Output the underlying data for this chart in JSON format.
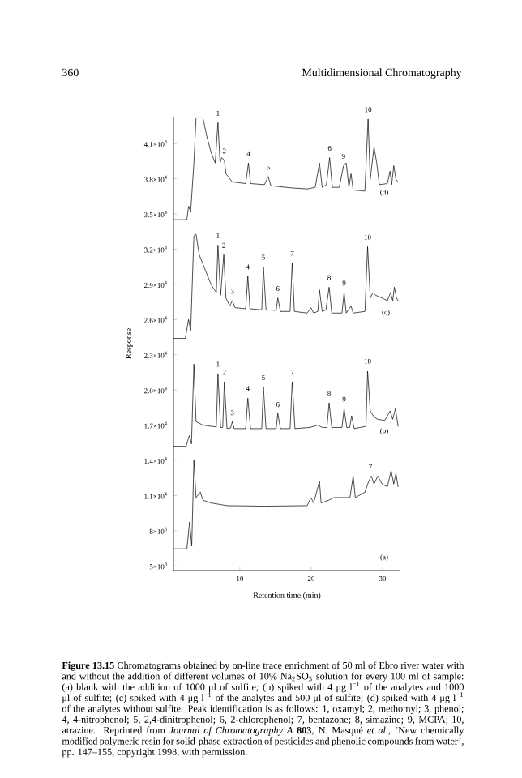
{
  "chart_data": {
    "type": "line",
    "xlabel": "Retention time (min)",
    "ylabel": "Response",
    "xlim": [
      0.7,
      32.5
    ],
    "ylim": [
      4600,
      43300
    ],
    "xticks": [
      10,
      20,
      30
    ],
    "yticks": [
      {
        "value": 5000,
        "label": "5×10$^{3}$"
      },
      {
        "value": 8000,
        "label": "8×10$^{3}$"
      },
      {
        "value": 11000,
        "label": "1.1×10$^{4}$"
      },
      {
        "value": 14000,
        "label": "1.4×10$^{4}$"
      },
      {
        "value": 17000,
        "label": "1.7×10$^{4}$"
      },
      {
        "value": 20000,
        "label": "2.0×10$^{4}$"
      },
      {
        "value": 23000,
        "label": "2.3×10$^{4}$"
      },
      {
        "value": 26000,
        "label": "2.6×10$^{4}$"
      },
      {
        "value": 29000,
        "label": "2.9×10$^{4}$"
      },
      {
        "value": 32000,
        "label": "3.2×10$^{4}$"
      },
      {
        "value": 35000,
        "label": "3.5×10$^{4}$"
      },
      {
        "value": 38000,
        "label": "3.8×10$^{4}$"
      },
      {
        "value": 41000,
        "label": "4.1×10$^{4}$"
      }
    ],
    "series": [
      {
        "color": "#000000",
        "x": [
          0.71,
          2.58,
          2.96,
          3.26,
          3.56,
          3.86,
          4.46,
          4.83,
          5.96,
          8.2,
          13.45,
          19.44,
          19.96,
          20.34,
          21.16,
          21.39,
          22.44,
          23.19,
          25.43,
          25.88,
          26.18,
          27.53,
          28.05,
          28.43,
          28.8,
          29.33,
          29.93,
          30.67,
          31.2,
          31.57,
          31.87,
          32.17
        ],
        "values": [
          6454,
          6454,
          8754,
          6684,
          14044,
          10824,
          11284,
          10594,
          10364,
          10134,
          10088,
          10134,
          10824,
          10364,
          12204,
          10364,
          10594,
          10824,
          10824,
          12664,
          10824,
          11284,
          12204,
          12664,
          11974,
          12664,
          11974,
          11744,
          13124,
          11974,
          12894,
          11744
        ]
      },
      {
        "color": "#000000",
        "x": [
          0.71,
          2.47,
          2.92,
          3.22,
          3.56,
          3.86,
          4.83,
          5.96,
          6.7,
          6.93,
          7.3,
          7.6,
          7.83,
          8.2,
          8.7,
          8.95,
          9.2,
          10.82,
          11.12,
          11.5,
          13.07,
          13.3,
          13.67,
          15.09,
          15.32,
          15.69,
          17.04,
          17.34,
          17.72,
          19.81,
          20.93,
          21.54,
          22.2,
          22.51,
          22.88,
          24.31,
          24.61,
          24.98,
          25.4,
          25.66,
          26.03,
          27.67,
          27.9,
          28.28,
          28.8,
          29.33,
          30.3,
          31.05,
          31.42,
          31.8,
          32.17
        ],
        "values": [
          15200,
          15200,
          16100,
          15400,
          22200,
          17300,
          17000,
          16900,
          16850,
          21400,
          16800,
          16800,
          20700,
          16700,
          16750,
          17300,
          16700,
          16700,
          19300,
          16700,
          16700,
          20300,
          16700,
          16700,
          18000,
          16700,
          16700,
          20700,
          16700,
          16800,
          17000,
          16800,
          16800,
          18900,
          16800,
          16800,
          18400,
          16800,
          16800,
          17800,
          16700,
          16900,
          21600,
          18200,
          17700,
          17500,
          17400,
          18200,
          17500,
          18400,
          16900
        ]
      },
      {
        "color": "#000000",
        "x": [
          0.71,
          2.36,
          2.81,
          3.11,
          3.56,
          3.86,
          4.31,
          5.21,
          5.96,
          6.7,
          6.93,
          7.3,
          7.75,
          8.05,
          8.58,
          8.95,
          9.33,
          10.82,
          11.12,
          11.42,
          13.07,
          13.3,
          13.67,
          15.09,
          15.32,
          15.69,
          17.04,
          17.34,
          17.64,
          19.44,
          19.96,
          20.34,
          20.93,
          21.16,
          21.54,
          22.06,
          22.51,
          22.88,
          24.31,
          24.61,
          24.91,
          25.58,
          25.88,
          27.53,
          27.9,
          28.28,
          28.65,
          29.03,
          29.55,
          30.67,
          31.12,
          31.42,
          31.65,
          31.95,
          32.17
        ],
        "values": [
          24394,
          24394,
          26004,
          25084,
          33134,
          33272,
          31524,
          30144,
          28994,
          28304,
          32352,
          28074,
          31524,
          27844,
          27154,
          27614,
          27016,
          26924,
          29684,
          26924,
          26832,
          30512,
          26832,
          26786,
          27844,
          26694,
          26694,
          30834,
          26694,
          26556,
          27016,
          26556,
          26694,
          28534,
          26694,
          26832,
          28764,
          26556,
          26556,
          28304,
          26556,
          27154,
          26556,
          26694,
          32214,
          27844,
          28304,
          28074,
          27936,
          27614,
          28304,
          27614,
          28764,
          27844,
          27614
        ]
      },
      {
        "color": "#000000",
        "x": [
          0.71,
          2.58,
          2.81,
          3.11,
          3.56,
          3.86,
          4.83,
          5.36,
          5.96,
          6.55,
          6.93,
          7.23,
          7.45,
          7.83,
          8.05,
          8.95,
          10.82,
          11.2,
          11.5,
          13.45,
          13.97,
          14.34,
          17.19,
          19.44,
          20.56,
          21.16,
          21.54,
          22.13,
          22.58,
          22.96,
          23.93,
          24.53,
          24.91,
          25.28,
          25.58,
          25.88,
          27.52,
          27.97,
          28.27,
          28.8,
          29.18,
          29.55,
          30.67,
          31.05,
          31.27,
          31.57,
          31.87,
          32.17
        ],
        "values": [
          34514,
          34514,
          35664,
          35204,
          39344,
          43200,
          43200,
          41644,
          40264,
          39344,
          42794,
          39344,
          39804,
          39574,
          38424,
          37734,
          37596,
          39344,
          37596,
          37504,
          38194,
          37412,
          37228,
          37136,
          37274,
          39344,
          37274,
          37504,
          39804,
          37274,
          37274,
          39114,
          39344,
          37274,
          38424,
          37044,
          36952,
          43100,
          37964,
          40724,
          39344,
          37504,
          37596,
          38654,
          37504,
          39114,
          37964,
          37734
        ]
      }
    ],
    "annotations": [
      "360",
      "Multidimensional Chromatography",
      "**Figure 13.15** Chromatograms obtained by on-line trace enrichment of 50 ml of Ebro river water with and without the addition of different volumes of 10% Na$_{2}$SO$_{3}$ solution for every 100 ml of sample: (a) blank with the addition of 1000 μl of sulfite; (b) spiked with 4 μg l$^{−1}$ of the analytes and 1000 μl of sulfite; (c) spiked with 4 μg l$^{−1}$ of the analytes and 500 μl of sulfite; (d) spiked with 4 μg l$^{−1}$ of the analytes without sulfite. Peak identification is as follows: 1, oxamyl; 2, methomyl; 3, phenol; 4, 4-nitrophenol; 5, 2,4-dinitrophenol; 6, 2-chlorophenol; 7, bentazone; 8, simazine; 9, MCPA; 10, atrazine. Reprinted from *Journal of Chromatography A* **803**, N. Masqué *et al.*, ‘New chemically modified polymeric resin for solid-phase extraction of pesticides and phenolic compounds from water’, pp. 147–155, copyright 1998, with permission.",
      {
        "text": "1",
        "x": 6.93,
        "y": 42794
      },
      {
        "text": "2",
        "x": 7.83,
        "y": 39574
      },
      {
        "text": "4",
        "x": 11.2,
        "y": 39344
      },
      {
        "text": "5",
        "x": 13.97,
        "y": 38194
      },
      {
        "text": "6",
        "x": 22.58,
        "y": 39804
      },
      {
        "text": "9",
        "x": 24.53,
        "y": 39114
      },
      {
        "text": "10",
        "x": 27.97,
        "y": 43100
      },
      "(d)",
      {
        "text": "1",
        "x": 6.93,
        "y": 32352
      },
      {
        "text": "2",
        "x": 7.75,
        "y": 31524
      },
      {
        "text": "3",
        "x": 8.95,
        "y": 27614
      },
      {
        "text": "4",
        "x": 11.12,
        "y": 29684
      },
      {
        "text": "5",
        "x": 13.3,
        "y": 30512
      },
      {
        "text": "6",
        "x": 15.32,
        "y": 27844
      },
      {
        "text": "7",
        "x": 17.34,
        "y": 30834
      },
      {
        "text": "8",
        "x": 22.51,
        "y": 28764
      },
      {
        "text": "9",
        "x": 24.61,
        "y": 28304
      },
      {
        "text": "10",
        "x": 27.9,
        "y": 32214
      },
      "(c)",
      {
        "text": "1",
        "x": 6.93,
        "y": 21404
      },
      {
        "text": "2",
        "x": 7.83,
        "y": 20714
      },
      {
        "text": "3",
        "x": 8.95,
        "y": 17264
      },
      {
        "text": "4",
        "x": 11.12,
        "y": 19334
      },
      {
        "text": "5",
        "x": 13.3,
        "y": 20254
      },
      {
        "text": "6",
        "x": 15.32,
        "y": 17954
      },
      {
        "text": "7",
        "x": 17.34,
        "y": 20714
      },
      {
        "text": "8",
        "x": 22.51,
        "y": 18874
      },
      {
        "text": "9",
        "x": 24.61,
        "y": 18414
      },
      {
        "text": "10",
        "x": 27.9,
        "y": 21634
      },
      "(b)",
      {
        "text": "7",
        "x": 28.3,
        "y": 12664
      },
      "(a)"
    ]
  }
}
